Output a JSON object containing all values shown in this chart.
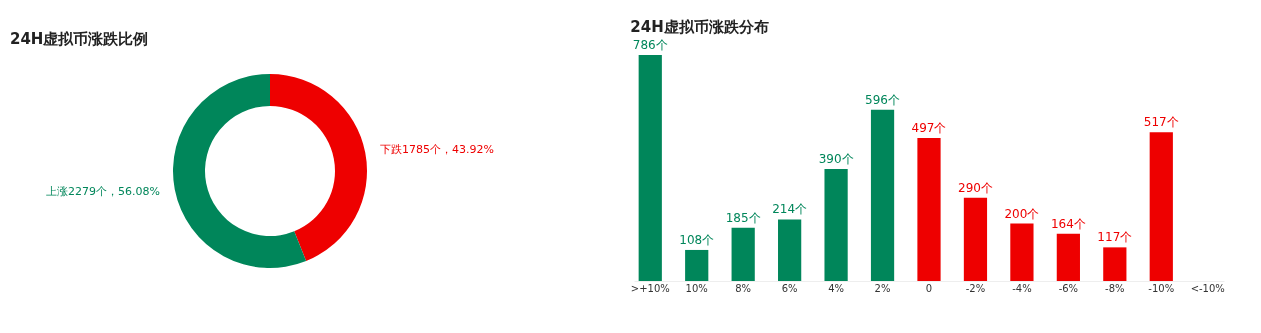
{
  "chart_data": [
    {
      "type": "donut",
      "title": "24H虚拟币涨跌比例",
      "categories": [
        "下跌",
        "上涨"
      ],
      "values": [
        1785,
        2279
      ],
      "colors": [
        "#ee0000",
        "#00865a"
      ],
      "value_labels": [
        "1785个，43.92%",
        "2279个，56.08%"
      ],
      "legend": false
    },
    {
      "type": "bar",
      "title": "24H虚拟币涨跌分布",
      "categories": [
        ">+10%",
        "10%",
        "8%",
        "6%",
        "4%",
        "2%",
        "0",
        "-2%",
        "-4%",
        "-6%",
        "-8%",
        "-10%",
        "<-10%"
      ],
      "values": [
        786,
        108,
        185,
        214,
        390,
        596,
        497,
        290,
        200,
        164,
        117,
        517,
        null
      ],
      "colors": [
        "#00865a",
        "#00865a",
        "#00865a",
        "#00865a",
        "#00865a",
        "#00865a",
        "#ee0000",
        "#ee0000",
        "#ee0000",
        "#ee0000",
        "#ee0000",
        "#ee0000",
        "#ee0000"
      ],
      "value_labels": [
        "786个",
        "108个",
        "185个",
        "214个",
        "390个",
        "596个",
        "497个",
        "290个",
        "200个",
        "164个",
        "117个",
        "517个",
        null
      ],
      "grid": false,
      "legend": false
    }
  ]
}
